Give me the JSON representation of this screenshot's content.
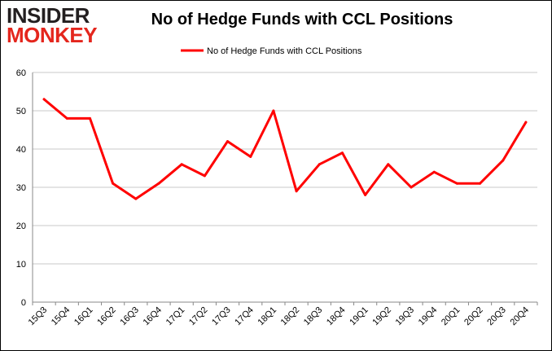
{
  "logo": {
    "line1": "INSIDER",
    "line2": "MONKEY"
  },
  "colors": {
    "series": "#ff0000",
    "grid": "#c8c8c8",
    "axis": "#888888",
    "logo_dark": "#231f20",
    "logo_red": "#e4261d"
  },
  "chart_data": {
    "type": "line",
    "title": "No of Hedge Funds with CCL Positions",
    "xlabel": "",
    "ylabel": "",
    "ylim": [
      0,
      60
    ],
    "yticks": [
      0,
      10,
      20,
      30,
      40,
      50,
      60
    ],
    "grid": true,
    "legend_position": "top-center",
    "categories": [
      "15Q3",
      "15Q4",
      "16Q1",
      "16Q2",
      "16Q3",
      "16Q4",
      "17Q1",
      "17Q2",
      "17Q3",
      "17Q4",
      "18Q1",
      "18Q2",
      "18Q3",
      "18Q4",
      "19Q1",
      "19Q2",
      "19Q3",
      "19Q4",
      "20Q1",
      "20Q2",
      "20Q3",
      "20Q4"
    ],
    "series": [
      {
        "name": "No of Hedge Funds with CCL Positions",
        "values": [
          53,
          48,
          48,
          31,
          27,
          31,
          36,
          33,
          42,
          38,
          50,
          29,
          36,
          39,
          28,
          36,
          30,
          34,
          31,
          31,
          37,
          47
        ]
      }
    ]
  }
}
